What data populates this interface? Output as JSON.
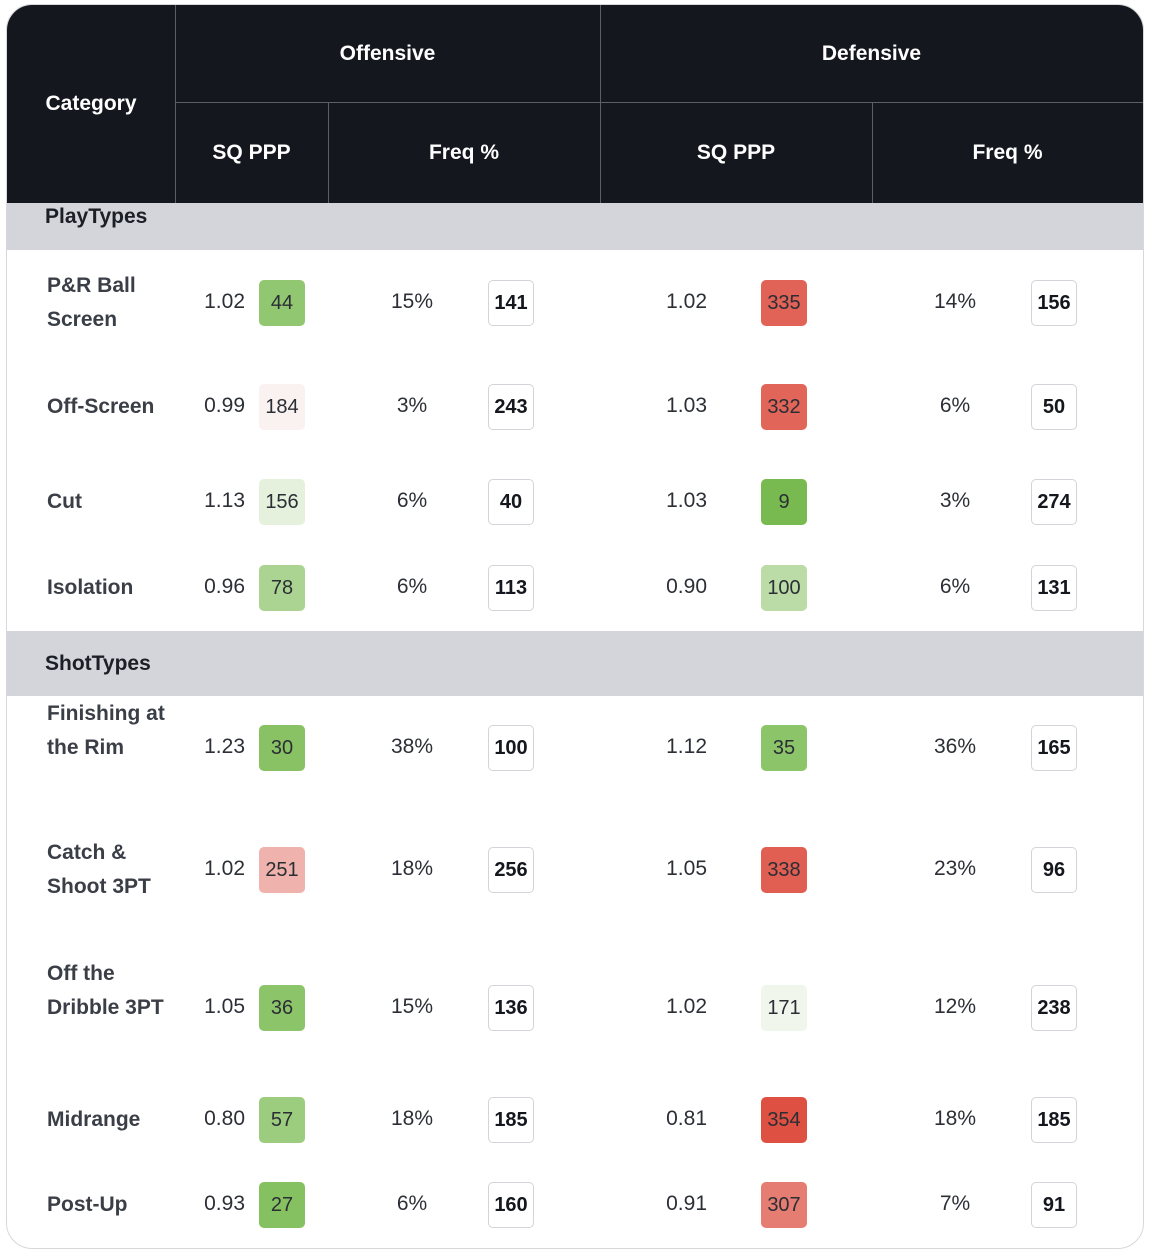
{
  "header": {
    "category": "Category",
    "offensive": "Offensive",
    "defensive": "Defensive",
    "sq_ppp": "SQ PPP",
    "freq": "Freq %"
  },
  "sections": [
    {
      "title": "PlayTypes",
      "rows": [
        {
          "name": "P&R Ball Screen",
          "off_ppp": "1.02",
          "off_ppp_rank": "44",
          "off_freq": "15%",
          "off_freq_rank": "141",
          "def_ppp": "1.02",
          "def_ppp_rank": "335",
          "def_freq": "14%",
          "def_freq_rank": "156"
        },
        {
          "name": "Off-Screen",
          "off_ppp": "0.99",
          "off_ppp_rank": "184",
          "off_freq": "3%",
          "off_freq_rank": "243",
          "def_ppp": "1.03",
          "def_ppp_rank": "332",
          "def_freq": "6%",
          "def_freq_rank": "50"
        },
        {
          "name": "Cut",
          "off_ppp": "1.13",
          "off_ppp_rank": "156",
          "off_freq": "6%",
          "off_freq_rank": "40",
          "def_ppp": "1.03",
          "def_ppp_rank": "9",
          "def_freq": "3%",
          "def_freq_rank": "274"
        },
        {
          "name": "Isolation",
          "off_ppp": "0.96",
          "off_ppp_rank": "78",
          "off_freq": "6%",
          "off_freq_rank": "113",
          "def_ppp": "0.90",
          "def_ppp_rank": "100",
          "def_freq": "6%",
          "def_freq_rank": "131"
        }
      ]
    },
    {
      "title": "ShotTypes",
      "rows": [
        {
          "name": "Finishing at the Rim",
          "off_ppp": "1.23",
          "off_ppp_rank": "30",
          "off_freq": "38%",
          "off_freq_rank": "100",
          "def_ppp": "1.12",
          "def_ppp_rank": "35",
          "def_freq": "36%",
          "def_freq_rank": "165"
        },
        {
          "name": "Catch & Shoot 3PT",
          "off_ppp": "1.02",
          "off_ppp_rank": "251",
          "off_freq": "18%",
          "off_freq_rank": "256",
          "def_ppp": "1.05",
          "def_ppp_rank": "338",
          "def_freq": "23%",
          "def_freq_rank": "96"
        },
        {
          "name": "Off the Dribble 3PT",
          "off_ppp": "1.05",
          "off_ppp_rank": "36",
          "off_freq": "15%",
          "off_freq_rank": "136",
          "def_ppp": "1.02",
          "def_ppp_rank": "171",
          "def_freq": "12%",
          "def_freq_rank": "238"
        },
        {
          "name": "Midrange",
          "off_ppp": "0.80",
          "off_ppp_rank": "57",
          "off_freq": "18%",
          "off_freq_rank": "185",
          "def_ppp": "0.81",
          "def_ppp_rank": "354",
          "def_freq": "18%",
          "def_freq_rank": "185"
        },
        {
          "name": "Post-Up",
          "off_ppp": "0.93",
          "off_ppp_rank": "27",
          "off_freq": "6%",
          "off_freq_rank": "160",
          "def_ppp": "0.91",
          "def_ppp_rank": "307",
          "def_freq": "7%",
          "def_freq_rank": "91"
        }
      ]
    }
  ]
}
